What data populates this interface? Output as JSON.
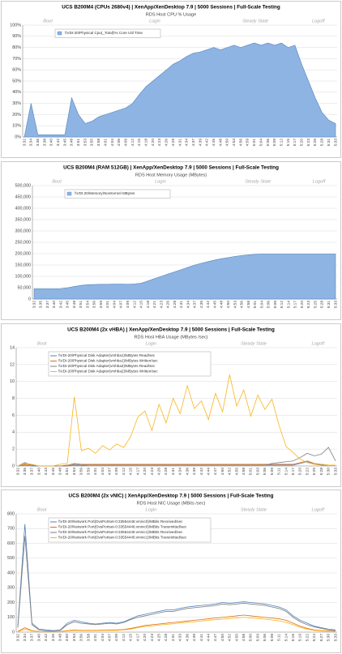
{
  "chart_data": [
    {
      "type": "area",
      "title": "UCS B200M4 (CPUs 2680v4) | XenApp/XenDesktop 7.9 | 5000 Sessions | Full-Scale Testing",
      "subtitle": "RDS Host CPU % Usage",
      "phases": [
        "Boot",
        "Login",
        "Steady State",
        "Logoff"
      ],
      "categories": [
        "3:32",
        "3:34",
        "3:36",
        "3:38",
        "3:40",
        "3:42",
        "3:45",
        "3:48",
        "3:51",
        "3:53",
        "3:55",
        "3:58",
        "4:01",
        "4:04",
        "4:06",
        "4:09",
        "4:12",
        "4:15",
        "4:18",
        "4:20",
        "4:23",
        "4:26",
        "4:29",
        "4:31",
        "4:34",
        "4:37",
        "4:39",
        "4:42",
        "4:45",
        "4:48",
        "4:50",
        "4:53",
        "4:56",
        "4:59",
        "5:01",
        "5:04",
        "5:06",
        "5:09",
        "5:12",
        "5:15",
        "5:17",
        "5:20",
        "5:23",
        "5:26",
        "5:28",
        "5:31",
        "5:33"
      ],
      "series": [
        {
          "name": "\\\\VDI-20\\Physical Cpu(_Total)\\% Core Util Time",
          "color": "#8eb4e3",
          "values": [
            0,
            30,
            2,
            2,
            2,
            2,
            2,
            35,
            20,
            12,
            14,
            18,
            20,
            22,
            24,
            26,
            30,
            38,
            45,
            50,
            55,
            60,
            65,
            68,
            72,
            75,
            76,
            78,
            80,
            78,
            80,
            82,
            80,
            82,
            84,
            82,
            84,
            82,
            84,
            80,
            82,
            65,
            50,
            35,
            22,
            15,
            12
          ]
        }
      ],
      "ylim": [
        0,
        100
      ],
      "yticks": [
        {
          "value": 0,
          "label": "0%"
        },
        {
          "value": 10,
          "label": "10%"
        },
        {
          "value": 20,
          "label": "20%"
        },
        {
          "value": 30,
          "label": "30%"
        },
        {
          "value": 40,
          "label": "40%"
        },
        {
          "value": 50,
          "label": "50%"
        },
        {
          "value": 60,
          "label": "60%"
        },
        {
          "value": 70,
          "label": "70%"
        },
        {
          "value": 80,
          "label": "80%"
        },
        {
          "value": 90,
          "label": "90%"
        },
        {
          "value": 100,
          "label": "100%"
        }
      ],
      "grid": true
    },
    {
      "type": "area",
      "title": "UCS B200M4 (RAM 512GB) | XenApp/XenDesktop 7.9 | 5000 Sessions | Full-Scale Testing",
      "subtitle": "RDS Host Memory Usage (MBytes)",
      "phases": [
        "Boot",
        "Login",
        "Steady State",
        "Logoff"
      ],
      "categories": [
        "3:32",
        "3:35",
        "3:37",
        "3:40",
        "3:42",
        "3:45",
        "3:48",
        "3:51",
        "3:54",
        "3:56",
        "3:59",
        "4:01",
        "4:04",
        "4:07",
        "4:09",
        "4:12",
        "4:15",
        "4:18",
        "4:21",
        "4:23",
        "4:26",
        "4:28",
        "4:31",
        "4:34",
        "4:37",
        "4:39",
        "4:42",
        "4:45",
        "4:48",
        "4:50",
        "4:53",
        "4:56",
        "4:58",
        "5:01",
        "5:04",
        "5:06",
        "5:09",
        "5:12",
        "5:14",
        "5:17",
        "5:20",
        "5:23",
        "5:25",
        "5:28",
        "5:31",
        "5:33"
      ],
      "series": [
        {
          "name": "\\\\VDI-20\\Memory\\NonKernel MBytes",
          "color": "#8eb4e3",
          "values": [
            45000,
            45000,
            45000,
            45000,
            46000,
            50000,
            55000,
            60000,
            63000,
            64000,
            65000,
            65000,
            66000,
            66000,
            65000,
            67000,
            70000,
            80000,
            90000,
            100000,
            110000,
            120000,
            130000,
            140000,
            150000,
            158000,
            165000,
            172000,
            178000,
            183000,
            188000,
            192000,
            195000,
            197000,
            198000,
            198000,
            198000,
            198000,
            198000,
            198000,
            198000,
            198000,
            198000,
            198000,
            198000,
            198000
          ]
        }
      ],
      "ylim": [
        0,
        500000
      ],
      "yticks": [
        0,
        {
          "value": 50000,
          "label": "50,000"
        },
        {
          "value": 100000,
          "label": "100,000"
        },
        {
          "value": 150000,
          "label": "150,000"
        },
        {
          "value": 200000,
          "label": "200,000"
        },
        {
          "value": 250000,
          "label": "250,000"
        },
        {
          "value": 300000,
          "label": "300,000"
        },
        {
          "value": 350000,
          "label": "350,000"
        },
        {
          "value": 400000,
          "label": "400,000"
        },
        {
          "value": 450000,
          "label": "450,000"
        },
        {
          "value": 500000,
          "label": "500,000"
        }
      ],
      "grid": true
    },
    {
      "type": "line",
      "title": "UCS B200M4 (2x vHBA) | XenApp/XenDesktop 7.9 | 5000 Sessions | Full-Scale Testing",
      "subtitle": "RDS Host HBA Usage (MBytes /sec)",
      "phases": [
        "Boot",
        "Login",
        "Steady State",
        "Logoff"
      ],
      "categories": [
        "3:32",
        "3:35",
        "3:37",
        "3:40",
        "3:43",
        "3:45",
        "3:48",
        "3:51",
        "3:53",
        "3:56",
        "3:59",
        "4:01",
        "4:04",
        "4:07",
        "4:09",
        "4:12",
        "4:15",
        "4:17",
        "4:20",
        "4:23",
        "4:26",
        "4:28",
        "4:31",
        "4:34",
        "4:36",
        "4:39",
        "4:42",
        "4:44",
        "4:47",
        "4:50",
        "4:52",
        "4:55",
        "4:58",
        "5:01",
        "5:03",
        "5:06",
        "5:09",
        "5:11",
        "5:14",
        "5:17",
        "5:20",
        "5:22",
        "5:25",
        "5:28",
        "5:30",
        "5:33"
      ],
      "series": [
        {
          "name": "\\\\VDI-20\\Physical Disk Adapter(vmhba1)\\MBytes Read/sec",
          "color": "#4f81bd",
          "values": [
            0,
            0.1,
            0,
            0,
            0,
            0,
            0,
            0,
            0.2,
            0.1,
            0.1,
            0.1,
            0.1,
            0.1,
            0.1,
            0.1,
            0.1,
            0.1,
            0.1,
            0.1,
            0.1,
            0.1,
            0.1,
            0.1,
            0.1,
            0.1,
            0.1,
            0.1,
            0.1,
            0.1,
            0.1,
            0.1,
            0.1,
            0.1,
            0.1,
            0.1,
            0.1,
            0.1,
            0.1,
            0.1,
            0.3,
            0.5,
            0.2,
            0.1,
            0.1,
            0.1
          ]
        },
        {
          "name": "\\\\VDI-20\\Physical Disk Adapter(vmhba1)\\MBytes Written/sec",
          "color": "#e46c0a",
          "values": [
            0,
            0.2,
            0.1,
            0,
            0,
            0,
            0,
            0.1,
            0.3,
            0.2,
            0.2,
            0.2,
            0.2,
            0.2,
            0.2,
            0.2,
            0.2,
            0.2,
            0.2,
            0.2,
            0.2,
            0.2,
            0.2,
            0.2,
            0.2,
            0.2,
            0.2,
            0.2,
            0.2,
            0.2,
            0.2,
            0.2,
            0.2,
            0.2,
            0.2,
            0.2,
            0.2,
            0.2,
            0.2,
            0.2,
            0.4,
            0.6,
            0.3,
            0.2,
            0.1,
            0.1
          ]
        },
        {
          "name": "\\\\VDI-20\\Physical Disk Adapter(vmhba2)\\MBytes Read/sec",
          "color": "#7f7f7f",
          "values": [
            0,
            0.4,
            0.1,
            0,
            0,
            0,
            0,
            0,
            0.1,
            0,
            0.1,
            0.1,
            0.1,
            0.1,
            0.1,
            0.1,
            0.1,
            0.1,
            0.1,
            0.1,
            0.1,
            0.1,
            0.1,
            0.1,
            0.1,
            0.1,
            0.1,
            0.1,
            0.1,
            0.1,
            0.1,
            0.1,
            0.1,
            0.1,
            0.1,
            0.1,
            0.3,
            0.4,
            0.5,
            0.6,
            1.0,
            1.5,
            1.2,
            1.4,
            2.2,
            0.6
          ]
        },
        {
          "name": "\\\\VDI-20\\Physical Disk Adapter(vmhba2)\\MBytes Written/sec",
          "color": "#f9b51b",
          "values": [
            0,
            0.3,
            0.2,
            0,
            0,
            0,
            0.2,
            0.3,
            8.2,
            1.8,
            2.1,
            1.5,
            2.4,
            1.9,
            2.6,
            2.2,
            3.5,
            5.8,
            6.5,
            4.2,
            7.3,
            5.1,
            8.0,
            6.2,
            9.5,
            6.8,
            7.7,
            5.5,
            8.6,
            6.4,
            10.8,
            7.1,
            9.0,
            5.9,
            8.4,
            6.7,
            7.9,
            4.8,
            2.3,
            1.6,
            0.8,
            0.4,
            0.2,
            0.2,
            0.1,
            0.1
          ]
        }
      ],
      "ylim": [
        0,
        14
      ],
      "yticks": [
        0,
        2,
        4,
        6,
        8,
        10,
        12,
        14
      ],
      "grid": true
    },
    {
      "type": "line",
      "title": "UCS B200M4 (2x vNIC) | XenApp/XenDesktop 7.9 | 5000 Sessions | Full-Scale Testing",
      "subtitle": "RDS Host NIC Usage (MBits /sec)",
      "phases": [
        "Boot",
        "Login",
        "Steady State",
        "Logoff"
      ],
      "categories": [
        "3:32",
        "3:34",
        "3:37",
        "3:40",
        "3:42",
        "3:45",
        "3:48",
        "3:50",
        "3:53",
        "3:56",
        "3:58",
        "4:01",
        "4:04",
        "4:07",
        "4:09",
        "4:12",
        "4:15",
        "4:17",
        "4:20",
        "4:23",
        "4:25",
        "4:28",
        "4:31",
        "4:33",
        "4:36",
        "4:39",
        "4:41",
        "4:44",
        "4:47",
        "4:50",
        "4:52",
        "4:55",
        "4:58",
        "5:00",
        "5:03",
        "5:06",
        "5:08",
        "5:11",
        "5:14",
        "5:16",
        "5:19",
        "5:22",
        "5:24",
        "5:27",
        "5:30",
        "5:33"
      ],
      "series": [
        {
          "name": "\\\\VDI-20\\Network Port(DvsPortset-0:33554446:vmnic0)\\MBits Received/sec",
          "color": "#4f81bd",
          "values": [
            40,
            730,
            60,
            20,
            15,
            10,
            15,
            60,
            80,
            70,
            60,
            55,
            60,
            65,
            60,
            70,
            90,
            110,
            120,
            130,
            140,
            150,
            150,
            160,
            170,
            175,
            180,
            185,
            190,
            200,
            195,
            200,
            205,
            200,
            195,
            190,
            180,
            170,
            150,
            110,
            80,
            60,
            40,
            30,
            20,
            15
          ]
        },
        {
          "name": "\\\\VDI-20\\Network Port(DvsPortset-0:33554446:vmnic0)\\MBits Transmitted/sec",
          "color": "#e46c0a",
          "values": [
            5,
            30,
            10,
            5,
            3,
            3,
            5,
            10,
            15,
            12,
            12,
            12,
            14,
            15,
            15,
            18,
            25,
            35,
            45,
            50,
            55,
            60,
            65,
            70,
            75,
            80,
            85,
            90,
            95,
            100,
            105,
            110,
            115,
            110,
            105,
            100,
            95,
            90,
            80,
            60,
            40,
            25,
            15,
            10,
            8,
            5
          ]
        },
        {
          "name": "\\\\VDI-20\\Network Port(DvsPortset-0:33554445:vmnic1)\\MBits Received/sec",
          "color": "#7f7f7f",
          "values": [
            30,
            650,
            50,
            15,
            10,
            8,
            12,
            50,
            70,
            60,
            55,
            50,
            55,
            60,
            55,
            65,
            85,
            100,
            110,
            120,
            130,
            140,
            140,
            150,
            160,
            165,
            170,
            175,
            180,
            190,
            185,
            190,
            195,
            190,
            185,
            180,
            170,
            160,
            140,
            100,
            70,
            50,
            35,
            25,
            15,
            10
          ]
        },
        {
          "name": "\\\\VDI-20\\Network Port(DvsPortset-0:33554445:vmnic1)\\MBits Transmitted/sec",
          "color": "#f9b51b",
          "values": [
            3,
            20,
            8,
            4,
            2,
            2,
            4,
            8,
            12,
            10,
            10,
            10,
            12,
            12,
            12,
            15,
            20,
            30,
            38,
            42,
            48,
            52,
            56,
            62,
            66,
            70,
            75,
            80,
            84,
            88,
            92,
            96,
            100,
            96,
            92,
            88,
            82,
            76,
            66,
            50,
            32,
            20,
            12,
            8,
            6,
            4
          ]
        }
      ],
      "ylim": [
        0,
        800
      ],
      "yticks": [
        0,
        100,
        200,
        300,
        400,
        500,
        600,
        700,
        800
      ],
      "grid": true
    }
  ]
}
